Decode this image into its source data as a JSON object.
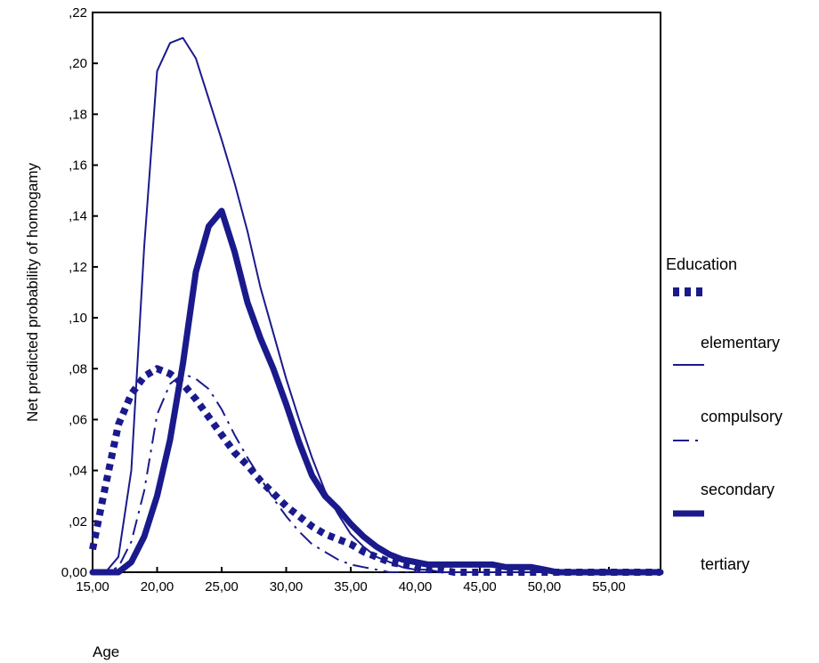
{
  "chart_data": {
    "type": "line",
    "xlabel": "Age",
    "ylabel": "Net predicted probability of homogamy",
    "xlim": [
      15,
      59
    ],
    "ylim": [
      0,
      0.22
    ],
    "x_ticks": [
      {
        "value": 15,
        "label": "15,00"
      },
      {
        "value": 20,
        "label": "20,00"
      },
      {
        "value": 25,
        "label": "25,00"
      },
      {
        "value": 30,
        "label": "30,00"
      },
      {
        "value": 35,
        "label": "35,00"
      },
      {
        "value": 40,
        "label": "40,00"
      },
      {
        "value": 45,
        "label": "45,00"
      },
      {
        "value": 50,
        "label": "50,00"
      },
      {
        "value": 55,
        "label": "55,00"
      }
    ],
    "y_ticks": [
      {
        "value": 0,
        "label": "0,00"
      },
      {
        "value": 0.02,
        "label": ",02"
      },
      {
        "value": 0.04,
        "label": ",04"
      },
      {
        "value": 0.06,
        "label": ",06"
      },
      {
        "value": 0.08,
        "label": ",08"
      },
      {
        "value": 0.1,
        "label": ",10"
      },
      {
        "value": 0.12,
        "label": ",12"
      },
      {
        "value": 0.14,
        "label": ",14"
      },
      {
        "value": 0.16,
        "label": ",16"
      },
      {
        "value": 0.18,
        "label": ",18"
      },
      {
        "value": 0.2,
        "label": ",20"
      },
      {
        "value": 0.22,
        "label": ",22"
      }
    ],
    "legend_title": "Education",
    "legend_position": "right",
    "color": "#1a1a8c",
    "x": [
      15,
      16,
      17,
      18,
      19,
      20,
      21,
      22,
      23,
      24,
      25,
      26,
      27,
      28,
      29,
      30,
      31,
      32,
      33,
      34,
      35,
      36,
      37,
      38,
      39,
      40,
      41,
      42,
      43,
      44,
      45,
      46,
      47,
      48,
      49,
      50,
      51,
      52,
      53,
      54,
      55,
      56,
      57,
      58,
      59
    ],
    "series": [
      {
        "name": "elementary",
        "style": "dotted-thick",
        "values": [
          0.009,
          0.034,
          0.058,
          0.07,
          0.077,
          0.08,
          0.078,
          0.074,
          0.068,
          0.061,
          0.054,
          0.047,
          0.042,
          0.036,
          0.031,
          0.026,
          0.022,
          0.018,
          0.015,
          0.013,
          0.011,
          0.008,
          0.006,
          0.004,
          0.003,
          0.002,
          0.001,
          0.001,
          0.0,
          0.0,
          0.0,
          0.0,
          0.0,
          0.0,
          0.0,
          0.0,
          0.0,
          0.0,
          0.0,
          0.0,
          0.0,
          0.0,
          0.0,
          0.0,
          0.0
        ]
      },
      {
        "name": "compulsory",
        "style": "thin-solid",
        "values": [
          0.0,
          0.0,
          0.006,
          0.04,
          0.128,
          0.197,
          0.208,
          0.21,
          0.202,
          0.186,
          0.17,
          0.153,
          0.134,
          0.112,
          0.094,
          0.076,
          0.06,
          0.045,
          0.032,
          0.023,
          0.015,
          0.01,
          0.006,
          0.004,
          0.002,
          0.001,
          0.001,
          0.0,
          0.0,
          0.0,
          0.0,
          0.0,
          0.0,
          0.0,
          0.0,
          0.0,
          0.0,
          0.0,
          0.0,
          0.0,
          0.0,
          0.0,
          0.0,
          0.0,
          0.0
        ]
      },
      {
        "name": "secondary",
        "style": "dash-dot",
        "values": [
          0.0,
          0.0,
          0.002,
          0.012,
          0.032,
          0.062,
          0.074,
          0.078,
          0.076,
          0.072,
          0.064,
          0.054,
          0.045,
          0.037,
          0.029,
          0.022,
          0.016,
          0.011,
          0.008,
          0.005,
          0.003,
          0.002,
          0.001,
          0.0,
          0.0,
          0.0,
          0.0,
          0.0,
          0.0,
          0.0,
          0.0,
          0.0,
          0.0,
          0.0,
          0.0,
          0.0,
          0.0,
          0.0,
          0.0,
          0.0,
          0.0,
          0.0,
          0.0,
          0.0,
          0.0
        ]
      },
      {
        "name": "tertiary",
        "style": "thick-solid",
        "values": [
          0.0,
          0.0,
          0.0,
          0.004,
          0.014,
          0.03,
          0.052,
          0.082,
          0.118,
          0.136,
          0.142,
          0.126,
          0.106,
          0.092,
          0.08,
          0.066,
          0.051,
          0.038,
          0.03,
          0.025,
          0.019,
          0.014,
          0.01,
          0.007,
          0.005,
          0.004,
          0.003,
          0.003,
          0.003,
          0.003,
          0.003,
          0.003,
          0.002,
          0.002,
          0.002,
          0.001,
          0.0,
          0.0,
          0.0,
          0.0,
          0.0,
          0.0,
          0.0,
          0.0,
          0.0
        ]
      }
    ]
  }
}
